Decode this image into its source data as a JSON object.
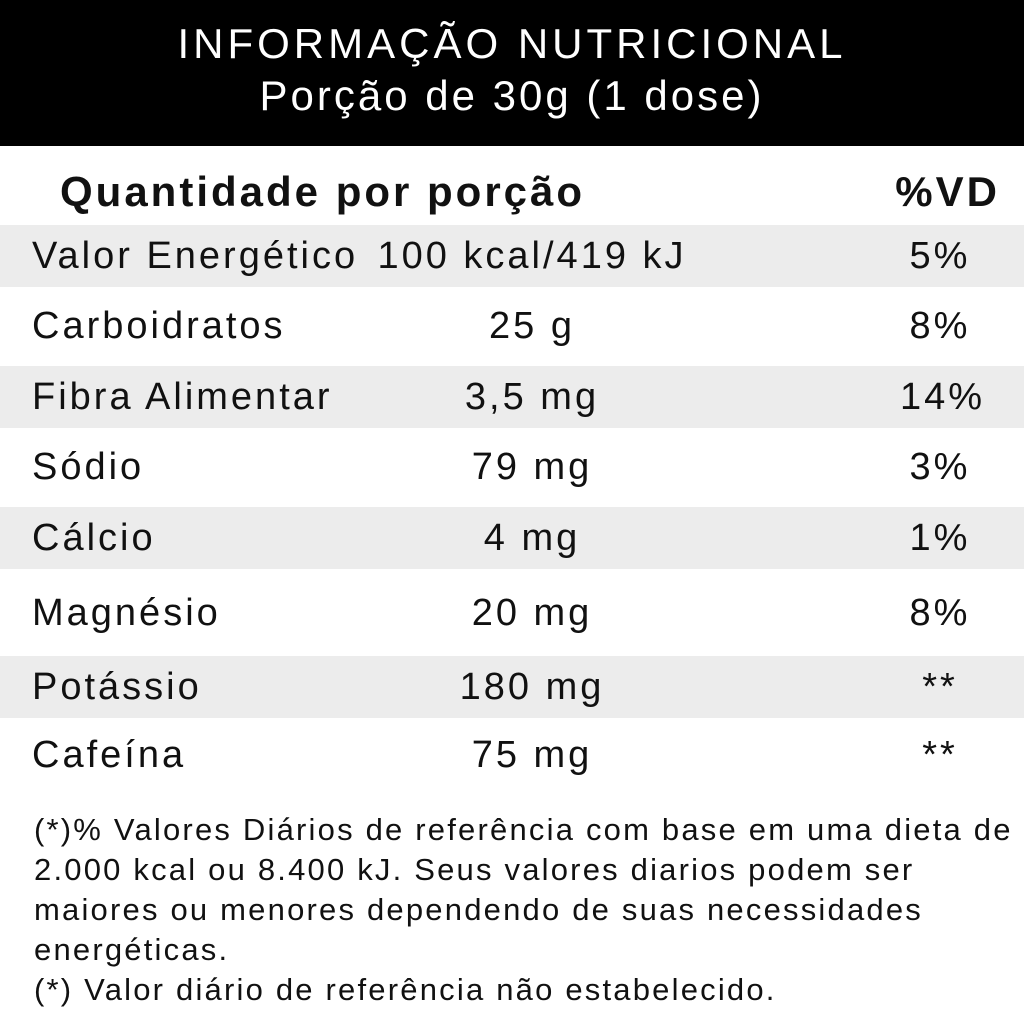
{
  "header": {
    "title": "INFORMAÇÃO NUTRICIONAL",
    "subtitle": "Porção de 30g (1 dose)"
  },
  "columns": {
    "quantity": "Quantidade por porção",
    "dv": "%VD"
  },
  "rows": [
    {
      "name": "Valor Energético",
      "amount": "100 kcal/419 kJ",
      "dv": "5%"
    },
    {
      "name": "Carboidratos",
      "amount": "25 g",
      "dv": "8%"
    },
    {
      "name": "Fibra Alimentar",
      "amount": "3,5 mg",
      "dv": "14%"
    },
    {
      "name": "Sódio",
      "amount": "79 mg",
      "dv": "3%"
    },
    {
      "name": "Cálcio",
      "amount": "4 mg",
      "dv": "1%"
    },
    {
      "name": "Magnésio",
      "amount": "20 mg",
      "dv": "8%"
    },
    {
      "name": "Potássio",
      "amount": "180 mg",
      "dv": "**"
    },
    {
      "name": "Cafeína",
      "amount": "75 mg",
      "dv": "**"
    }
  ],
  "footnotes": [
    "(*)% Valores Diários de referência com base em uma dieta de 2.000 kcal ou 8.400 kJ. Seus valores diarios podem ser maiores ou menores dependendo de suas necessidades energéticas.",
    "(*) Valor diário de referência não estabelecido."
  ]
}
